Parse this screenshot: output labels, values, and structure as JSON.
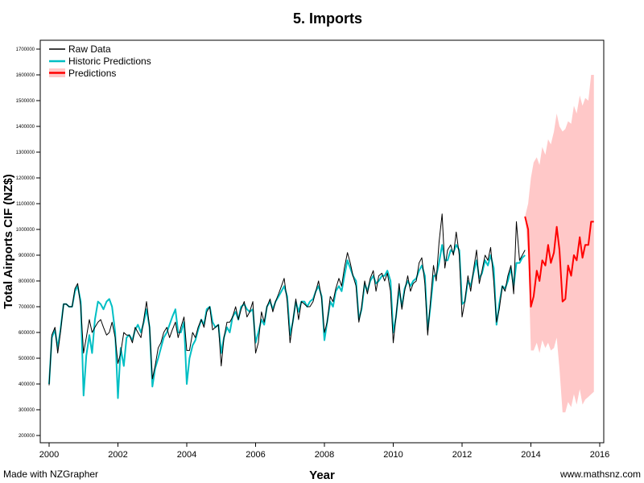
{
  "footer": {
    "left": "Made with NZGrapher",
    "right": "www.mathsnz.com"
  },
  "chart_data": {
    "type": "line",
    "title": "5. Imports",
    "xlabel": "Year",
    "ylabel": "Total Airports CIF (NZ$)",
    "xlim": [
      2000,
      2016
    ],
    "ylim": [
      200000,
      1700000
    ],
    "xticks": [
      2000,
      2002,
      2004,
      2006,
      2008,
      2010,
      2012,
      2014,
      2016
    ],
    "yticks": [
      200000,
      300000,
      400000,
      500000,
      600000,
      700000,
      800000,
      900000,
      1000000,
      1100000,
      1200000,
      1300000,
      1400000,
      1500000,
      1600000,
      1700000
    ],
    "ytick_labels": [
      "200000",
      "300000",
      "400000",
      "500000",
      "600000",
      "700000",
      "800000",
      "900000",
      "1000000",
      "1100000",
      "1200000",
      "1300000",
      "1400000",
      "1500000",
      "1600000",
      "1700000"
    ],
    "legend": {
      "position": "top-left",
      "entries": [
        {
          "label": "Raw Data",
          "color": "#000000",
          "style": "line"
        },
        {
          "label": "Historic Predictions",
          "color": "#00c0c0",
          "style": "line"
        },
        {
          "label": "Predictions",
          "color": "#ff0000",
          "style": "band"
        }
      ]
    },
    "colors": {
      "raw": "#000000",
      "historic": "#00bfc4",
      "prediction": "#ff0000",
      "band": "#ffc8c8"
    },
    "series": [
      {
        "name": "Raw Data",
        "x": [
          2000.0,
          2000.08,
          2000.17,
          2000.25,
          2000.33,
          2000.42,
          2000.5,
          2000.58,
          2000.67,
          2000.75,
          2000.83,
          2000.92,
          2001.0,
          2001.08,
          2001.17,
          2001.25,
          2001.33,
          2001.42,
          2001.5,
          2001.58,
          2001.67,
          2001.75,
          2001.83,
          2001.92,
          2002.0,
          2002.08,
          2002.17,
          2002.25,
          2002.33,
          2002.42,
          2002.5,
          2002.58,
          2002.67,
          2002.75,
          2002.83,
          2002.92,
          2003.0,
          2003.08,
          2003.17,
          2003.25,
          2003.33,
          2003.42,
          2003.5,
          2003.58,
          2003.67,
          2003.75,
          2003.83,
          2003.92,
          2004.0,
          2004.08,
          2004.17,
          2004.25,
          2004.33,
          2004.42,
          2004.5,
          2004.58,
          2004.67,
          2004.75,
          2004.83,
          2004.92,
          2005.0,
          2005.08,
          2005.17,
          2005.25,
          2005.33,
          2005.42,
          2005.5,
          2005.58,
          2005.67,
          2005.75,
          2005.83,
          2005.92,
          2006.0,
          2006.08,
          2006.17,
          2006.25,
          2006.33,
          2006.42,
          2006.5,
          2006.58,
          2006.67,
          2006.75,
          2006.83,
          2006.92,
          2007.0,
          2007.08,
          2007.17,
          2007.25,
          2007.33,
          2007.42,
          2007.5,
          2007.58,
          2007.67,
          2007.75,
          2007.83,
          2007.92,
          2008.0,
          2008.08,
          2008.17,
          2008.25,
          2008.33,
          2008.42,
          2008.5,
          2008.58,
          2008.67,
          2008.75,
          2008.83,
          2008.92,
          2009.0,
          2009.08,
          2009.17,
          2009.25,
          2009.33,
          2009.42,
          2009.5,
          2009.58,
          2009.67,
          2009.75,
          2009.83,
          2009.92,
          2010.0,
          2010.08,
          2010.17,
          2010.25,
          2010.33,
          2010.42,
          2010.5,
          2010.58,
          2010.67,
          2010.75,
          2010.83,
          2010.92,
          2011.0,
          2011.08,
          2011.17,
          2011.25,
          2011.33,
          2011.42,
          2011.5,
          2011.58,
          2011.67,
          2011.75,
          2011.83,
          2011.92,
          2012.0,
          2012.08,
          2012.17,
          2012.25,
          2012.33,
          2012.42,
          2012.5,
          2012.58,
          2012.67,
          2012.75,
          2012.83,
          2012.92,
          2013.0,
          2013.08,
          2013.17,
          2013.25,
          2013.33,
          2013.42,
          2013.5,
          2013.58,
          2013.67,
          2013.75,
          2013.83
        ],
        "values": [
          395000,
          590000,
          620000,
          520000,
          600000,
          710000,
          710000,
          700000,
          700000,
          770000,
          790000,
          700000,
          520000,
          580000,
          650000,
          600000,
          620000,
          640000,
          650000,
          620000,
          590000,
          600000,
          640000,
          580000,
          480000,
          520000,
          600000,
          590000,
          590000,
          560000,
          620000,
          600000,
          580000,
          650000,
          720000,
          620000,
          420000,
          470000,
          540000,
          560000,
          600000,
          620000,
          580000,
          610000,
          640000,
          580000,
          620000,
          660000,
          530000,
          530000,
          600000,
          580000,
          620000,
          650000,
          620000,
          680000,
          700000,
          610000,
          620000,
          630000,
          470000,
          580000,
          640000,
          640000,
          660000,
          700000,
          650000,
          690000,
          720000,
          660000,
          680000,
          720000,
          520000,
          560000,
          680000,
          640000,
          700000,
          730000,
          680000,
          720000,
          750000,
          780000,
          810000,
          720000,
          560000,
          640000,
          730000,
          650000,
          720000,
          710000,
          700000,
          700000,
          720000,
          760000,
          800000,
          730000,
          600000,
          640000,
          740000,
          720000,
          770000,
          810000,
          780000,
          850000,
          910000,
          870000,
          820000,
          780000,
          640000,
          700000,
          800000,
          750000,
          810000,
          840000,
          760000,
          820000,
          830000,
          800000,
          830000,
          760000,
          560000,
          660000,
          790000,
          690000,
          760000,
          820000,
          760000,
          790000,
          800000,
          870000,
          890000,
          790000,
          590000,
          720000,
          860000,
          800000,
          950000,
          1060000,
          850000,
          920000,
          940000,
          900000,
          990000,
          900000,
          660000,
          720000,
          820000,
          760000,
          840000,
          920000,
          790000,
          840000,
          900000,
          880000,
          930000,
          800000,
          640000,
          690000,
          780000,
          760000,
          820000,
          860000,
          750000,
          1030000,
          880000,
          900000,
          920000
        ]
      },
      {
        "name": "Historic Predictions",
        "x": [
          2000.0,
          2000.08,
          2000.17,
          2000.25,
          2000.33,
          2000.42,
          2000.5,
          2000.58,
          2000.67,
          2000.75,
          2000.83,
          2000.92,
          2001.0,
          2001.08,
          2001.17,
          2001.25,
          2001.33,
          2001.42,
          2001.5,
          2001.58,
          2001.67,
          2001.75,
          2001.83,
          2001.92,
          2002.0,
          2002.08,
          2002.17,
          2002.25,
          2002.33,
          2002.42,
          2002.5,
          2002.58,
          2002.67,
          2002.75,
          2002.83,
          2002.92,
          2003.0,
          2003.08,
          2003.17,
          2003.25,
          2003.33,
          2003.42,
          2003.5,
          2003.58,
          2003.67,
          2003.75,
          2003.83,
          2003.92,
          2004.0,
          2004.08,
          2004.17,
          2004.25,
          2004.33,
          2004.42,
          2004.5,
          2004.58,
          2004.67,
          2004.75,
          2004.83,
          2004.92,
          2005.0,
          2005.08,
          2005.17,
          2005.25,
          2005.33,
          2005.42,
          2005.5,
          2005.58,
          2005.67,
          2005.75,
          2005.83,
          2005.92,
          2006.0,
          2006.08,
          2006.17,
          2006.25,
          2006.33,
          2006.42,
          2006.5,
          2006.58,
          2006.67,
          2006.75,
          2006.83,
          2006.92,
          2007.0,
          2007.08,
          2007.17,
          2007.25,
          2007.33,
          2007.42,
          2007.5,
          2007.58,
          2007.67,
          2007.75,
          2007.83,
          2007.92,
          2008.0,
          2008.08,
          2008.17,
          2008.25,
          2008.33,
          2008.42,
          2008.5,
          2008.58,
          2008.67,
          2008.75,
          2008.83,
          2008.92,
          2009.0,
          2009.08,
          2009.17,
          2009.25,
          2009.33,
          2009.42,
          2009.5,
          2009.58,
          2009.67,
          2009.75,
          2009.83,
          2009.92,
          2010.0,
          2010.08,
          2010.17,
          2010.25,
          2010.33,
          2010.42,
          2010.5,
          2010.58,
          2010.67,
          2010.75,
          2010.83,
          2010.92,
          2011.0,
          2011.08,
          2011.17,
          2011.25,
          2011.33,
          2011.42,
          2011.5,
          2011.58,
          2011.67,
          2011.75,
          2011.83,
          2011.92,
          2012.0,
          2012.08,
          2012.17,
          2012.25,
          2012.33,
          2012.42,
          2012.5,
          2012.58,
          2012.67,
          2012.75,
          2012.83,
          2012.92,
          2013.0,
          2013.08,
          2013.17,
          2013.25,
          2013.33,
          2013.42,
          2013.5,
          2013.58,
          2013.67,
          2013.75,
          2013.83
        ],
        "values": [
          400000,
          580000,
          610000,
          540000,
          610000,
          710000,
          710000,
          700000,
          700000,
          760000,
          780000,
          720000,
          355000,
          510000,
          590000,
          520000,
          650000,
          720000,
          710000,
          690000,
          720000,
          730000,
          700000,
          600000,
          345000,
          540000,
          470000,
          580000,
          590000,
          570000,
          610000,
          630000,
          600000,
          640000,
          690000,
          620000,
          390000,
          460000,
          500000,
          540000,
          580000,
          600000,
          630000,
          660000,
          690000,
          600000,
          600000,
          640000,
          400000,
          500000,
          550000,
          570000,
          610000,
          650000,
          630000,
          690000,
          700000,
          640000,
          620000,
          630000,
          520000,
          580000,
          620000,
          600000,
          660000,
          680000,
          650000,
          700000,
          710000,
          690000,
          680000,
          690000,
          560000,
          600000,
          650000,
          630000,
          700000,
          720000,
          690000,
          720000,
          740000,
          760000,
          780000,
          740000,
          590000,
          640000,
          720000,
          680000,
          720000,
          720000,
          700000,
          720000,
          730000,
          760000,
          780000,
          740000,
          570000,
          640000,
          720000,
          700000,
          760000,
          780000,
          760000,
          820000,
          880000,
          850000,
          820000,
          800000,
          650000,
          690000,
          790000,
          760000,
          800000,
          820000,
          790000,
          800000,
          820000,
          820000,
          840000,
          800000,
          600000,
          660000,
          770000,
          700000,
          770000,
          800000,
          780000,
          800000,
          810000,
          840000,
          860000,
          820000,
          610000,
          700000,
          820000,
          820000,
          870000,
          940000,
          880000,
          880000,
          920000,
          910000,
          940000,
          920000,
          710000,
          720000,
          800000,
          780000,
          830000,
          880000,
          810000,
          830000,
          880000,
          860000,
          900000,
          850000,
          630000,
          710000,
          780000,
          770000,
          800000,
          850000,
          780000,
          870000,
          870000,
          890000,
          900000
        ]
      },
      {
        "name": "Predictions",
        "x": [
          2013.83,
          2013.92,
          2014.0,
          2014.08,
          2014.17,
          2014.25,
          2014.33,
          2014.42,
          2014.5,
          2014.58,
          2014.67,
          2014.75,
          2014.83,
          2014.92,
          2015.0,
          2015.08,
          2015.17,
          2015.25,
          2015.33,
          2015.42,
          2015.5,
          2015.58,
          2015.67,
          2015.75,
          2015.83
        ],
        "values": [
          1050000,
          1000000,
          700000,
          740000,
          840000,
          800000,
          880000,
          860000,
          940000,
          870000,
          910000,
          1010000,
          920000,
          720000,
          730000,
          860000,
          820000,
          900000,
          880000,
          970000,
          890000,
          940000,
          940000,
          1030000,
          1030000
        ],
        "upper": [
          1050000,
          1100000,
          1200000,
          1260000,
          1280000,
          1250000,
          1320000,
          1290000,
          1350000,
          1330000,
          1380000,
          1450000,
          1400000,
          1380000,
          1390000,
          1420000,
          1410000,
          1480000,
          1450000,
          1520000,
          1480000,
          1510000,
          1500000,
          1600000,
          1600000
        ],
        "lower": [
          1050000,
          900000,
          530000,
          530000,
          560000,
          520000,
          570000,
          540000,
          560000,
          530000,
          540000,
          580000,
          460000,
          290000,
          290000,
          330000,
          310000,
          360000,
          320000,
          380000,
          320000,
          340000,
          350000,
          360000,
          370000
        ]
      }
    ]
  }
}
